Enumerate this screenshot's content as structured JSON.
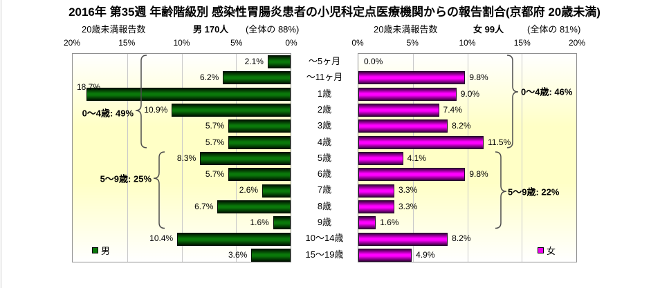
{
  "title": "2016年 第35週 年齢階級別 感染性胃腸炎患者の小児科定点医療機関からの報告割合(京都府 20歳未満)",
  "chart_data": {
    "type": "bar",
    "layout": "horizontal population pyramid, two mirrored panels, gradient plot background, gridlines every 5%",
    "xmax": 20,
    "axis_ticks_left_panel": [
      "20%",
      "15%",
      "10%",
      "5%",
      "0%"
    ],
    "axis_ticks_right_panel": [
      "0%",
      "5%",
      "10%",
      "15%",
      "20%"
    ],
    "categories": [
      "〜5ヶ月",
      "〜11ヶ月",
      "1歳",
      "2歳",
      "3歳",
      "4歳",
      "5歳",
      "6歳",
      "7歳",
      "8歳",
      "9歳",
      "10〜14歳",
      "15〜19歳"
    ],
    "series": [
      {
        "name": "男",
        "side": "left",
        "header_label": "20歳未満報告数",
        "total_label": "男 170人",
        "share_label": "(全体の 88%)",
        "legend_label": "男",
        "bar_color": "#0a780a",
        "values": [
          2.1,
          6.2,
          18.7,
          10.9,
          5.7,
          5.7,
          8.3,
          5.7,
          2.6,
          6.7,
          1.6,
          10.4,
          3.6
        ],
        "value_labels": [
          "2.1%",
          "6.2%",
          "18.7%",
          "10.9%",
          "5.7%",
          "5.7%",
          "8.3%",
          "5.7%",
          "2.6%",
          "6.7%",
          "1.6%",
          "10.4%",
          "3.6%"
        ],
        "group_annotations": [
          {
            "label": "0〜4歳: 49%",
            "from_index": 0,
            "to_index": 5
          },
          {
            "label": "5〜9歳: 25%",
            "from_index": 6,
            "to_index": 10
          }
        ]
      },
      {
        "name": "女",
        "side": "right",
        "header_label": "20歳未満報告数",
        "total_label": "女 99人",
        "share_label": "(全体の 81%)",
        "legend_label": "女",
        "bar_color": "#ee00ee",
        "values": [
          0.0,
          9.8,
          9.0,
          7.4,
          8.2,
          11.5,
          4.1,
          9.8,
          3.3,
          3.3,
          1.6,
          8.2,
          4.9
        ],
        "value_labels": [
          "0.0%",
          "9.8%",
          "9.0%",
          "7.4%",
          "8.2%",
          "11.5%",
          "4.1%",
          "9.8%",
          "3.3%",
          "3.3%",
          "1.6%",
          "8.2%",
          "4.9%"
        ],
        "group_annotations": [
          {
            "label": "0〜4歳: 46%",
            "from_index": 0,
            "to_index": 5
          },
          {
            "label": "5〜9歳: 22%",
            "from_index": 6,
            "to_index": 10
          }
        ]
      }
    ]
  }
}
